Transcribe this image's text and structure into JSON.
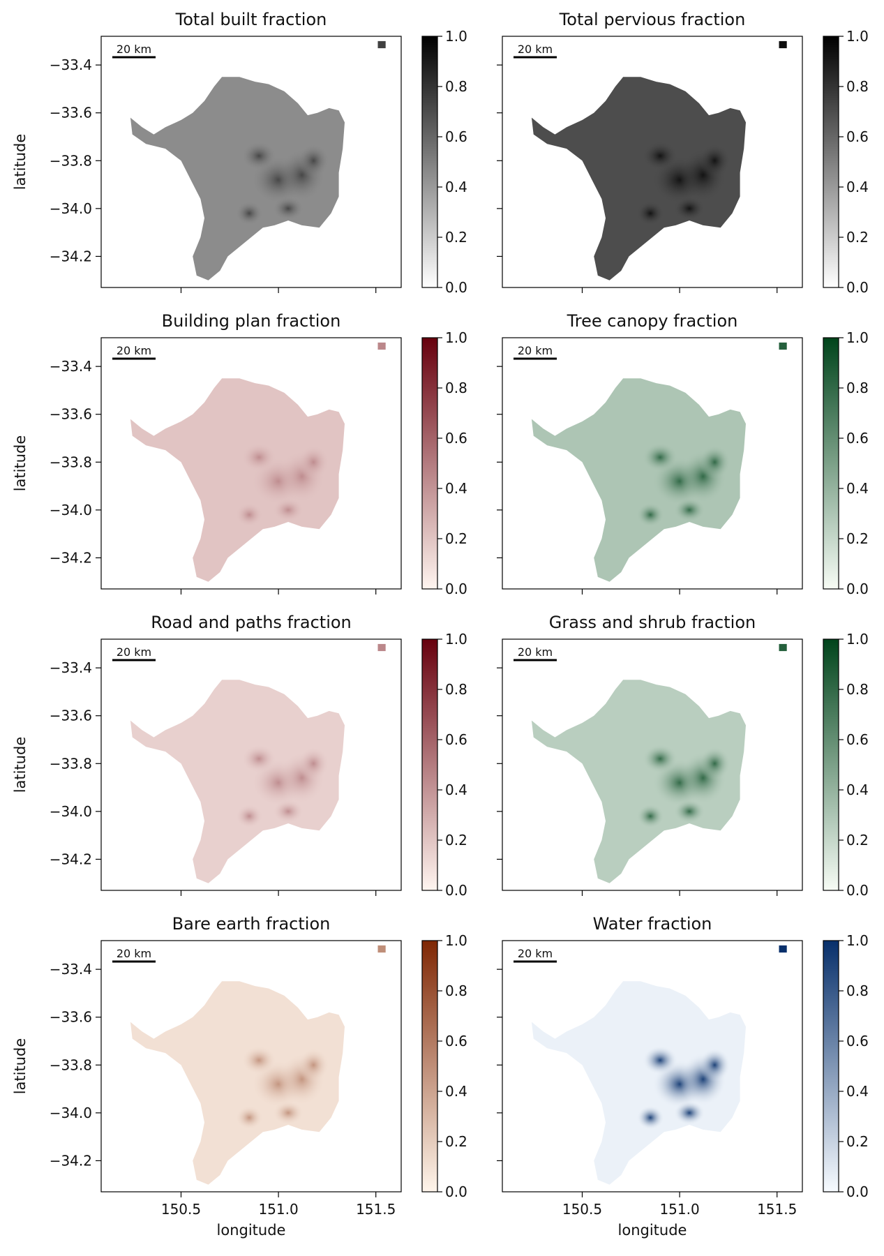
{
  "chart_data": {
    "type": "heatmap",
    "grid": "off",
    "xlabel": "longitude",
    "ylabel": "latitude",
    "xlim": [
      150.09,
      151.63
    ],
    "ylim": [
      -34.33,
      -33.28
    ],
    "xticks": [
      150.5,
      151.0,
      151.5
    ],
    "xtick_labels": [
      "150.5",
      "151.0",
      "151.5"
    ],
    "yticks": [
      -33.4,
      -33.6,
      -33.8,
      -34.0,
      -34.2
    ],
    "ytick_labels": [
      "−33.4",
      "−33.6",
      "−33.8",
      "−34.0",
      "−34.2"
    ],
    "colorbar_ticks": [
      0.0,
      0.2,
      0.4,
      0.6,
      0.8,
      1.0
    ],
    "colorbar_tick_labels": [
      "0.0",
      "0.2",
      "0.4",
      "0.6",
      "0.8",
      "1.0"
    ],
    "colorbar_range": [
      0,
      1
    ],
    "scalebar_label": "20 km",
    "panels": [
      {
        "title": "Total built fraction",
        "colormap": "Greys",
        "colors": [
          "#ffffff",
          "#000000"
        ],
        "typical_value": 0.45,
        "peak_value": 0.75
      },
      {
        "title": "Total pervious fraction",
        "colormap": "Greys",
        "colors": [
          "#ffffff",
          "#000000"
        ],
        "typical_value": 0.7,
        "peak_value": 0.95
      },
      {
        "title": "Building plan fraction",
        "colormap": "Reds",
        "colors": [
          "#fff5f0",
          "#67000d"
        ],
        "typical_value": 0.2,
        "peak_value": 0.45
      },
      {
        "title": "Tree canopy fraction",
        "colormap": "Greens",
        "colors": [
          "#f7fcf5",
          "#00441b"
        ],
        "typical_value": 0.3,
        "peak_value": 0.85
      },
      {
        "title": "Road and paths fraction",
        "colormap": "Reds",
        "colors": [
          "#fff5f0",
          "#67000d"
        ],
        "typical_value": 0.15,
        "peak_value": 0.45
      },
      {
        "title": "Grass and shrub fraction",
        "colormap": "Greens",
        "colors": [
          "#f7fcf5",
          "#00441b"
        ],
        "typical_value": 0.25,
        "peak_value": 0.85
      },
      {
        "title": "Bare earth fraction",
        "colormap": "Oranges",
        "colors": [
          "#fff5eb",
          "#7f2704"
        ],
        "typical_value": 0.1,
        "peak_value": 0.5
      },
      {
        "title": "Water fraction",
        "colormap": "Blues",
        "colors": [
          "#f7fbff",
          "#08306b"
        ],
        "typical_value": 0.05,
        "peak_value": 1.0
      }
    ]
  }
}
